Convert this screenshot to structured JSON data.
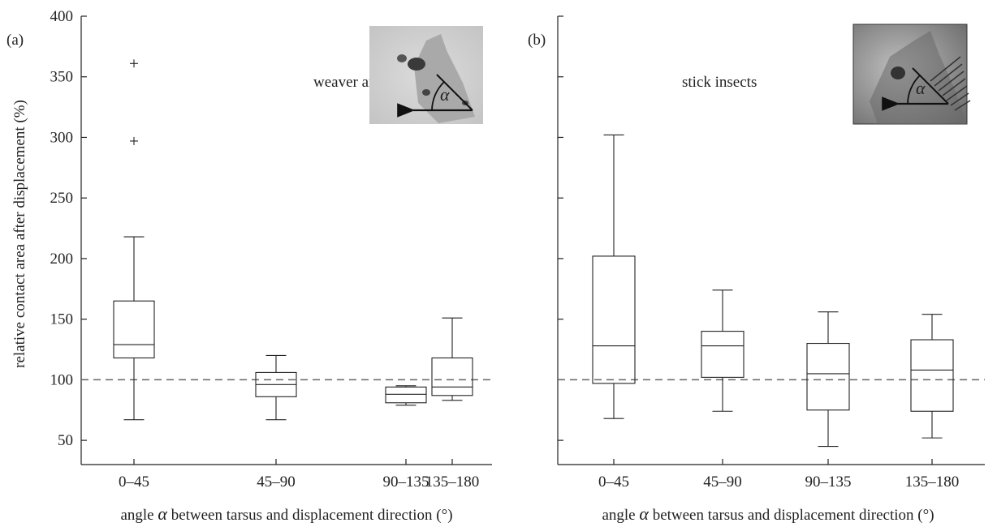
{
  "chart_data": [
    {
      "type": "box",
      "panel_label": "(a)",
      "annotation": "weaver ants",
      "ylabel": "relative contact area after displacement (%)",
      "xlabel_prefix": "angle ",
      "xlabel_symbol": "α",
      "xlabel_suffix": " between tarsus and displacement direction (°)",
      "categories": [
        "0–45",
        "45–90",
        "90–135",
        "135–180"
      ],
      "boxes": [
        {
          "whisker_low": 67,
          "q1": 118,
          "median": 129,
          "q3": 165,
          "whisker_high": 218,
          "outliers": [
            297,
            361
          ]
        },
        {
          "whisker_low": 67,
          "q1": 86,
          "median": 96,
          "q3": 106,
          "whisker_high": 120,
          "outliers": []
        },
        {
          "whisker_low": 79,
          "q1": 81,
          "median": 88,
          "q3": 94,
          "whisker_high": 95,
          "outliers": []
        },
        {
          "whisker_low": 83,
          "q1": 87,
          "median": 94,
          "q3": 118,
          "whisker_high": 151,
          "outliers": []
        }
      ],
      "reference_line": 100,
      "ylim": [
        30,
        400
      ],
      "yticks": [
        50,
        100,
        150,
        200,
        250,
        300,
        350,
        400
      ],
      "show_ytick_labels": true,
      "inset": {
        "kind": "photo",
        "symbol": "α",
        "tone": "light"
      }
    },
    {
      "type": "box",
      "panel_label": "(b)",
      "annotation": "stick insects",
      "xlabel_prefix": "angle ",
      "xlabel_symbol": "α",
      "xlabel_suffix": " between tarsus and displacement direction (°)",
      "categories": [
        "0–45",
        "45–90",
        "90–135",
        "135–180"
      ],
      "boxes": [
        {
          "whisker_low": 68,
          "q1": 97,
          "median": 128,
          "q3": 202,
          "whisker_high": 302,
          "outliers": []
        },
        {
          "whisker_low": 74,
          "q1": 102,
          "median": 128,
          "q3": 140,
          "whisker_high": 174,
          "outliers": []
        },
        {
          "whisker_low": 45,
          "q1": 75,
          "median": 105,
          "q3": 130,
          "whisker_high": 156,
          "outliers": []
        },
        {
          "whisker_low": 52,
          "q1": 74,
          "median": 108,
          "q3": 133,
          "whisker_high": 154,
          "outliers": []
        }
      ],
      "reference_line": 100,
      "ylim": [
        30,
        400
      ],
      "yticks": [
        50,
        100,
        150,
        200,
        250,
        300,
        350,
        400
      ],
      "show_ytick_labels": false,
      "inset": {
        "kind": "photo",
        "symbol": "α",
        "tone": "dark"
      }
    }
  ]
}
